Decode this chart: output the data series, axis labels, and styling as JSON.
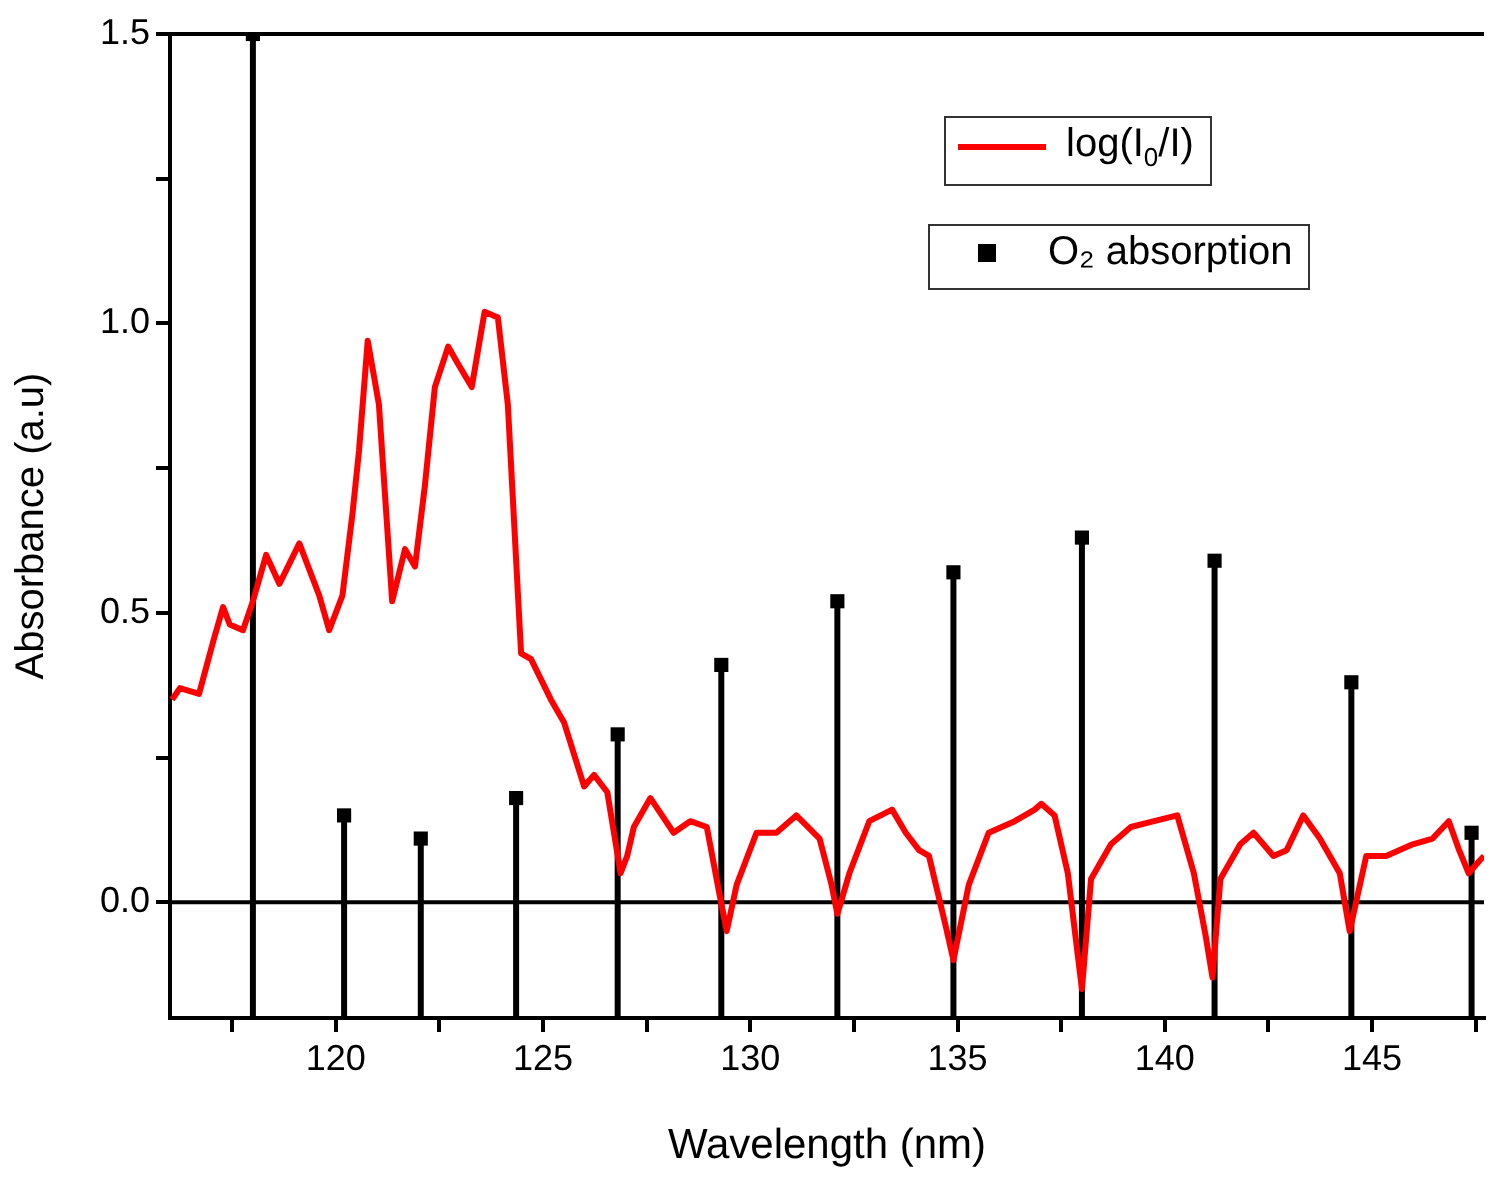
{
  "chart_data": {
    "type": "line",
    "xlabel": "Wavelength (nm)",
    "ylabel": "Absorbance (a.u)",
    "xlim": [
      116,
      147.7
    ],
    "xticks": [
      {
        "value": 117.5,
        "label": null
      },
      120,
      {
        "value": 122.5,
        "label": null
      },
      125,
      {
        "value": 127.5,
        "label": null
      },
      130,
      {
        "value": 132.5,
        "label": null
      },
      135,
      {
        "value": 137.5,
        "label": null
      },
      140,
      {
        "value": 142.5,
        "label": null
      },
      145,
      {
        "value": 147.5,
        "label": null
      }
    ],
    "ylim": [
      -0.2,
      1.5
    ],
    "yticks": [
      {
        "value": 0,
        "label": "0.0"
      },
      {
        "value": 0.25,
        "label": null
      },
      {
        "value": 0.5,
        "label": "0.5"
      },
      {
        "value": 0.75,
        "label": null
      },
      {
        "value": 1,
        "label": "1.0"
      },
      {
        "value": 1.25,
        "label": null
      },
      {
        "value": 1.5,
        "label": "1.5"
      }
    ],
    "grid": false,
    "legend": "top right",
    "ref_lines": [
      {
        "axis": "y",
        "value": 0,
        "color": "#000000"
      }
    ],
    "series": [
      {
        "name": "log(I$_{0}$/I)",
        "color": "#ff0000",
        "marker": "none",
        "line_style": "solid",
        "x": [
          116.05,
          116.24,
          116.7,
          117.04,
          117.28,
          117.44,
          117.76,
          118.0,
          118.32,
          118.64,
          119.12,
          119.6,
          119.84,
          120.16,
          120.4,
          120.56,
          120.77,
          121.04,
          121.36,
          121.67,
          121.91,
          122.15,
          122.39,
          122.71,
          122.95,
          123.28,
          123.59,
          123.91,
          124.15,
          124.47,
          124.71,
          125.19,
          125.51,
          125.99,
          126.23,
          126.55,
          126.87,
          127.03,
          127.19,
          127.59,
          128.15,
          128.55,
          128.95,
          129.24,
          129.43,
          129.67,
          130.15,
          130.63,
          131.11,
          131.67,
          131.96,
          132.1,
          132.39,
          132.87,
          133.42,
          133.75,
          134.07,
          134.31,
          134.71,
          134.9,
          135.27,
          135.75,
          136.38,
          136.86,
          137.02,
          137.34,
          137.66,
          138.0,
          138.22,
          138.7,
          139.18,
          139.74,
          140.3,
          140.7,
          140.99,
          141.15,
          141.34,
          141.82,
          142.14,
          142.62,
          142.94,
          143.34,
          143.74,
          144.22,
          144.46,
          144.86,
          145.34,
          145.98,
          146.46,
          146.85,
          147.1,
          147.33,
          147.57,
          147.7
        ],
        "values": [
          0.35,
          0.37,
          0.36,
          0.45,
          0.51,
          0.48,
          0.47,
          0.52,
          0.6,
          0.55,
          0.62,
          0.53,
          0.47,
          0.53,
          0.67,
          0.78,
          0.97,
          0.86,
          0.52,
          0.61,
          0.58,
          0.72,
          0.89,
          0.96,
          0.93,
          0.89,
          1.02,
          1.01,
          0.86,
          0.43,
          0.42,
          0.35,
          0.31,
          0.2,
          0.22,
          0.19,
          0.05,
          0.08,
          0.13,
          0.18,
          0.12,
          0.14,
          0.13,
          0.02,
          -0.05,
          0.03,
          0.12,
          0.12,
          0.15,
          0.11,
          0.03,
          -0.02,
          0.05,
          0.14,
          0.16,
          0.12,
          0.09,
          0.08,
          -0.04,
          -0.1,
          0.03,
          0.12,
          0.14,
          0.16,
          0.17,
          0.15,
          0.05,
          -0.15,
          0.04,
          0.1,
          0.13,
          0.14,
          0.15,
          0.05,
          -0.06,
          -0.13,
          0.04,
          0.1,
          0.12,
          0.08,
          0.09,
          0.15,
          0.11,
          0.05,
          -0.05,
          0.08,
          0.08,
          0.1,
          0.11,
          0.14,
          0.09,
          0.05,
          0.07,
          0.08
        ]
      },
      {
        "name": "O₂ absorption",
        "type": "scatter",
        "color": "#000000",
        "marker": "square",
        "x": [
          118.0,
          120.2,
          122.05,
          124.35,
          126.8,
          129.3,
          132.1,
          134.9,
          138.0,
          141.2,
          144.5,
          147.4
        ],
        "values": [
          1.5,
          0.15,
          0.11,
          0.18,
          0.29,
          0.41,
          0.52,
          0.57,
          0.63,
          0.59,
          0.38,
          0.12
        ],
        "errors": [
          [
            -0.2,
            1.5
          ],
          [
            -0.2,
            0.15
          ],
          [
            -0.2,
            0.11
          ],
          [
            -0.2,
            0.18
          ],
          [
            -0.2,
            0.29
          ],
          [
            -0.2,
            0.41
          ],
          [
            -0.2,
            0.52
          ],
          [
            -0.2,
            0.57
          ],
          [
            -0.2,
            0.63
          ],
          [
            -0.2,
            0.59
          ],
          [
            -0.2,
            0.38
          ],
          [
            -0.2,
            0.12
          ]
        ]
      }
    ]
  }
}
